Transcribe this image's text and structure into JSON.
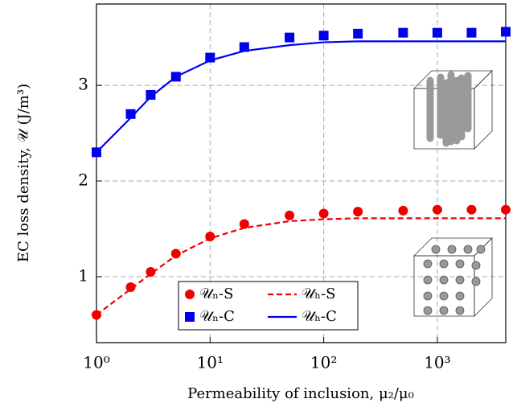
{
  "chart_data": {
    "type": "line",
    "x_label": "Permeability of inclusion, μ₂/μ₀",
    "y_label": "EC loss density, 𝒰 (J/m³)",
    "x": [
      1,
      2,
      3,
      5,
      10,
      20,
      50,
      100,
      200,
      500,
      1000,
      2000,
      4000
    ],
    "xlim": [
      1,
      4000
    ],
    "ylim": [
      0.31,
      3.85
    ],
    "x_log": true,
    "grid": true,
    "xticks": [
      {
        "value": 1,
        "label": "10⁰"
      },
      {
        "value": 10,
        "label": "10¹"
      },
      {
        "value": 100,
        "label": "10²"
      },
      {
        "value": 1000,
        "label": "10³"
      }
    ],
    "yticks": [
      1,
      2,
      3
    ],
    "series": [
      {
        "name": "𝒰ₙ-S",
        "color": "#ee0000",
        "style": "markers",
        "marker": "circle",
        "values": [
          0.6,
          0.89,
          1.05,
          1.24,
          1.42,
          1.55,
          1.64,
          1.66,
          1.68,
          1.69,
          1.7,
          1.7,
          1.7
        ]
      },
      {
        "name": "𝒰ₕ-S",
        "color": "#ee0000",
        "style": "dashed",
        "values": [
          0.6,
          0.87,
          1.03,
          1.22,
          1.4,
          1.51,
          1.58,
          1.6,
          1.61,
          1.61,
          1.61,
          1.61,
          1.61
        ]
      },
      {
        "name": "𝒰ₙ-C",
        "color": "#0000ee",
        "style": "markers",
        "marker": "square",
        "values": [
          2.3,
          2.7,
          2.9,
          3.09,
          3.29,
          3.4,
          3.5,
          3.52,
          3.54,
          3.55,
          3.55,
          3.55,
          3.56
        ]
      },
      {
        "name": "𝒰ₕ-C",
        "color": "#0000ee",
        "style": "solid",
        "values": [
          2.3,
          2.66,
          2.88,
          3.09,
          3.26,
          3.36,
          3.42,
          3.45,
          3.46,
          3.46,
          3.46,
          3.46,
          3.46
        ]
      }
    ]
  }
}
